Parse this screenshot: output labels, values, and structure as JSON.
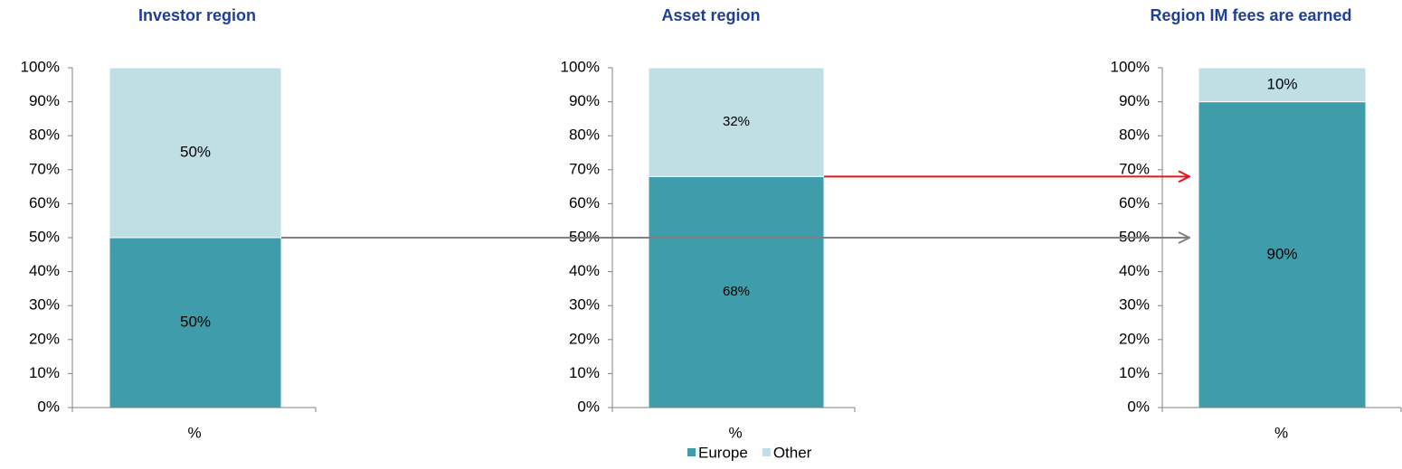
{
  "chart_data": [
    {
      "type": "bar",
      "stacked": true,
      "title": "Investor region",
      "categories": [
        "%"
      ],
      "series": [
        {
          "color": "#3f9caa",
          "values": [
            50
          ],
          "value_labels": [
            "50%"
          ]
        },
        {
          "color": "#bfdfe4",
          "values": [
            50
          ],
          "value_labels": [
            "50%"
          ]
        }
      ],
      "ylim": [
        0,
        100
      ],
      "yticks": [
        {
          "value": 0,
          "label": "0%"
        },
        {
          "value": 10,
          "label": "10%"
        },
        {
          "value": 20,
          "label": "20%"
        },
        {
          "value": 30,
          "label": "30%"
        },
        {
          "value": 40,
          "label": "40%"
        },
        {
          "value": 50,
          "label": "50%"
        },
        {
          "value": 60,
          "label": "60%"
        },
        {
          "value": 70,
          "label": "70%"
        },
        {
          "value": 80,
          "label": "80%"
        },
        {
          "value": 90,
          "label": "90%"
        },
        {
          "value": 100,
          "label": "100%"
        }
      ]
    },
    {
      "type": "bar",
      "stacked": true,
      "title": "Asset region",
      "categories": [
        "%"
      ],
      "series": [
        {
          "name": "Europe",
          "color": "#3f9caa",
          "values": [
            68
          ],
          "value_labels": [
            "68%"
          ]
        },
        {
          "name": "Other",
          "color": "#bfdfe4",
          "values": [
            32
          ],
          "value_labels": [
            "32%"
          ]
        }
      ],
      "ylim": [
        0,
        100
      ],
      "yticks": [
        {
          "value": 0,
          "label": "0%"
        },
        {
          "value": 10,
          "label": "10%"
        },
        {
          "value": 20,
          "label": "20%"
        },
        {
          "value": 30,
          "label": "30%"
        },
        {
          "value": 40,
          "label": "40%"
        },
        {
          "value": 50,
          "label": "50%"
        },
        {
          "value": 60,
          "label": "60%"
        },
        {
          "value": 70,
          "label": "70%"
        },
        {
          "value": 80,
          "label": "80%"
        },
        {
          "value": 90,
          "label": "90%"
        },
        {
          "value": 100,
          "label": "100%"
        }
      ]
    },
    {
      "type": "bar",
      "stacked": true,
      "title": "Region IM fees are earned",
      "categories": [
        "%"
      ],
      "series": [
        {
          "color": "#3f9caa",
          "values": [
            90
          ],
          "value_labels": [
            "90%"
          ]
        },
        {
          "color": "#bfdfe4",
          "values": [
            10
          ],
          "value_labels": [
            "10%"
          ]
        }
      ],
      "ylim": [
        0,
        100
      ],
      "yticks": [
        {
          "value": 0,
          "label": "0%"
        },
        {
          "value": 10,
          "label": "10%"
        },
        {
          "value": 20,
          "label": "20%"
        },
        {
          "value": 30,
          "label": "30%"
        },
        {
          "value": 40,
          "label": "40%"
        },
        {
          "value": 50,
          "label": "50%"
        },
        {
          "value": 60,
          "label": "60%"
        },
        {
          "value": 70,
          "label": "70%"
        },
        {
          "value": 80,
          "label": "80%"
        },
        {
          "value": 90,
          "label": "90%"
        },
        {
          "value": 100,
          "label": "100%"
        }
      ]
    }
  ]
}
